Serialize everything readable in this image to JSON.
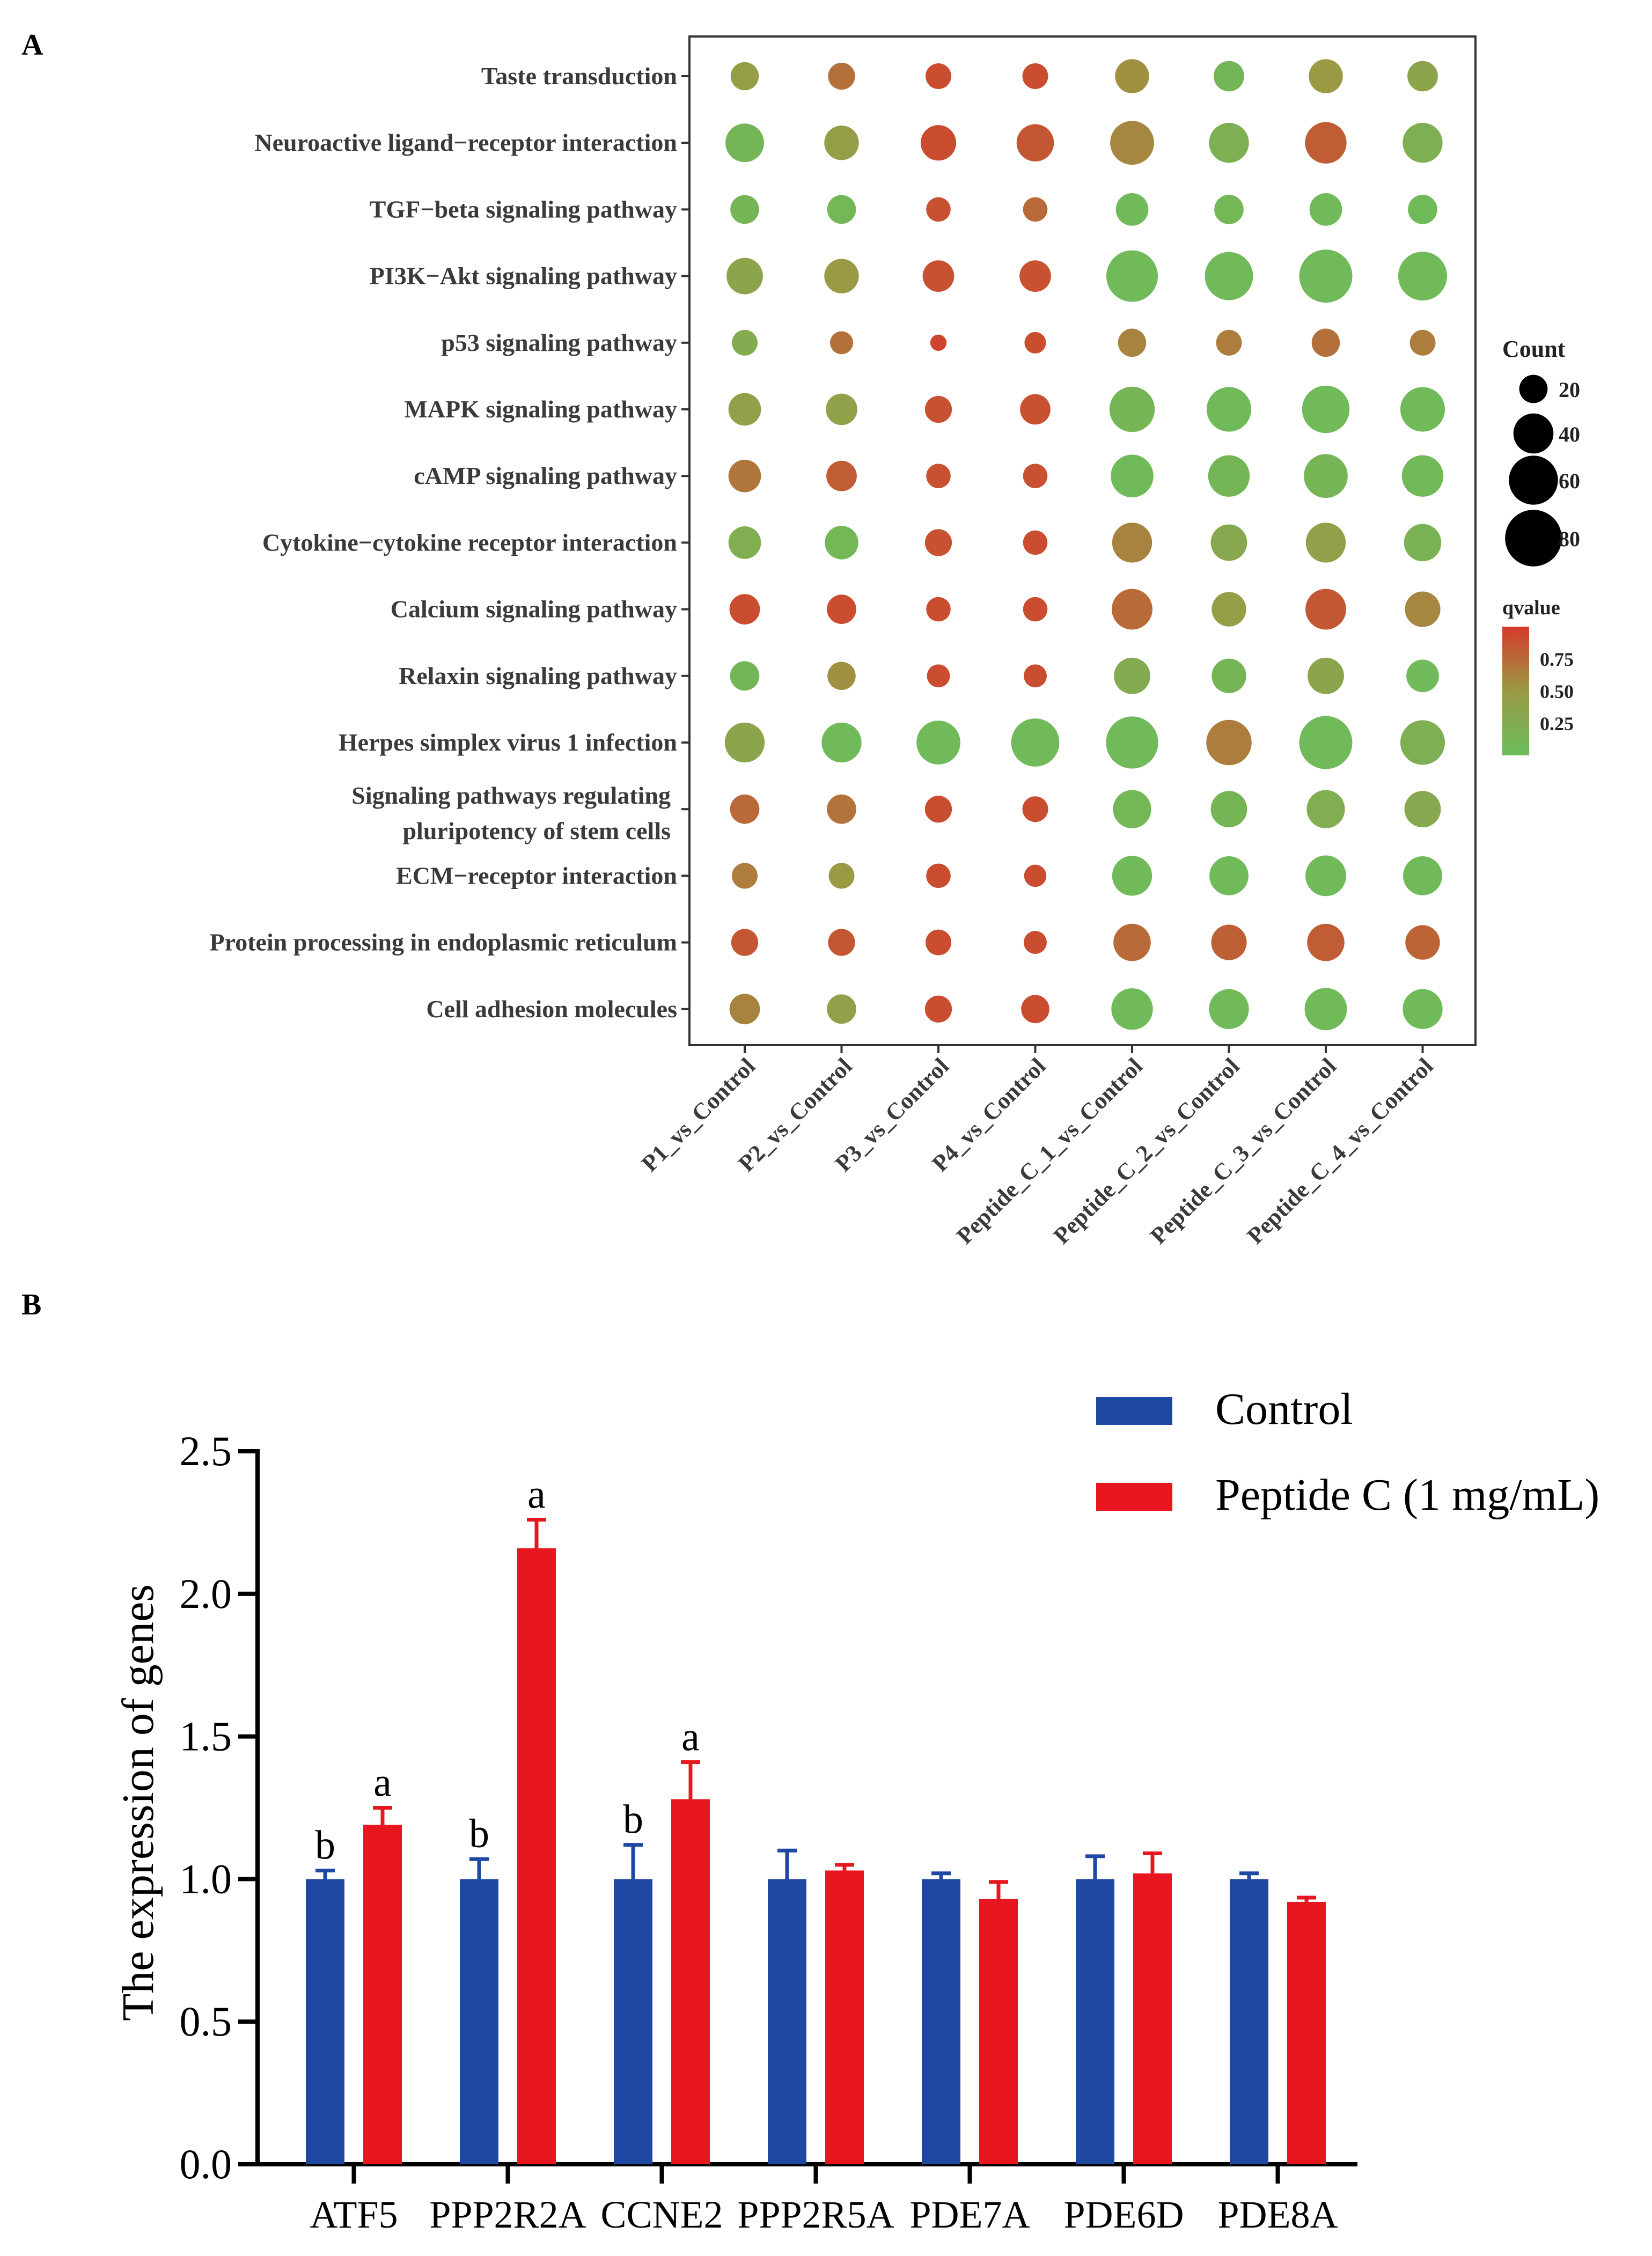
{
  "chart_data": [
    {
      "panel_label": "A",
      "type": "scatter",
      "subtype": "bubble",
      "title": "",
      "pathways": [
        "Taste transduction",
        "Neuroactive ligand−receptor interaction",
        "TGF−beta signaling pathway",
        "PI3K−Akt signaling pathway",
        "p53 signaling pathway",
        "MAPK signaling pathway",
        "cAMP signaling pathway",
        "Cytokine−cytokine receptor interaction",
        "Calcium signaling pathway",
        "Relaxin signaling pathway",
        "Herpes simplex virus 1 infection",
        [
          "Signaling pathways regulating",
          "pluripotency of stem cells"
        ],
        "ECM−receptor interaction",
        "Protein processing in endoplasmic reticulum",
        "Cell adhesion molecules"
      ],
      "comparisons": [
        "P1_vs_Control",
        "P2_vs_Control",
        "P3_vs_Control",
        "P4_vs_Control",
        "Peptide_C_1_vs_Control",
        "Peptide_C_2_vs_Control",
        "Peptide_C_3_vs_Control",
        "Peptide_C_4_vs_Control"
      ],
      "count": [
        [
          24,
          22,
          20,
          20,
          35,
          28,
          35,
          28
        ],
        [
          45,
          36,
          38,
          42,
          58,
          48,
          52,
          48
        ],
        [
          25,
          25,
          18,
          18,
          32,
          26,
          32,
          26
        ],
        [
          40,
          36,
          30,
          30,
          80,
          70,
          85,
          72
        ],
        [
          20,
          16,
          8,
          14,
          24,
          20,
          24,
          20
        ],
        [
          32,
          30,
          22,
          28,
          62,
          60,
          68,
          60
        ],
        [
          32,
          28,
          18,
          18,
          55,
          52,
          58,
          52
        ],
        [
          32,
          34,
          22,
          18,
          48,
          40,
          48,
          42
        ],
        [
          28,
          26,
          18,
          18,
          50,
          36,
          50,
          38
        ],
        [
          26,
          24,
          16,
          16,
          40,
          36,
          40,
          32
        ],
        [
          48,
          48,
          58,
          70,
          82,
          62,
          85,
          60
        ],
        [
          26,
          26,
          22,
          20,
          44,
          40,
          44,
          40
        ],
        [
          20,
          20,
          18,
          15,
          48,
          46,
          50,
          46
        ],
        [
          22,
          22,
          20,
          16,
          42,
          38,
          42,
          36
        ],
        [
          28,
          26,
          22,
          24,
          52,
          48,
          54,
          48
        ]
      ],
      "qvalue": [
        [
          0.45,
          0.72,
          0.9,
          0.9,
          0.55,
          0.1,
          0.5,
          0.35
        ],
        [
          0.1,
          0.45,
          0.9,
          0.85,
          0.6,
          0.2,
          0.82,
          0.2
        ],
        [
          0.12,
          0.08,
          0.88,
          0.75,
          0.05,
          0.08,
          0.05,
          0.05
        ],
        [
          0.35,
          0.5,
          0.88,
          0.88,
          0.05,
          0.05,
          0.05,
          0.05
        ],
        [
          0.25,
          0.72,
          0.95,
          0.9,
          0.62,
          0.65,
          0.72,
          0.65
        ],
        [
          0.42,
          0.38,
          0.88,
          0.88,
          0.12,
          0.05,
          0.05,
          0.05
        ],
        [
          0.68,
          0.82,
          0.88,
          0.88,
          0.05,
          0.1,
          0.12,
          0.05
        ],
        [
          0.22,
          0.08,
          0.88,
          0.9,
          0.62,
          0.3,
          0.4,
          0.15
        ],
        [
          0.9,
          0.9,
          0.9,
          0.9,
          0.75,
          0.45,
          0.85,
          0.6
        ],
        [
          0.1,
          0.55,
          0.9,
          0.9,
          0.25,
          0.12,
          0.35,
          0.05
        ],
        [
          0.35,
          0.05,
          0.05,
          0.05,
          0.05,
          0.65,
          0.05,
          0.2
        ],
        [
          0.75,
          0.7,
          0.9,
          0.9,
          0.08,
          0.12,
          0.22,
          0.3
        ],
        [
          0.65,
          0.5,
          0.9,
          0.9,
          0.05,
          0.05,
          0.05,
          0.05
        ],
        [
          0.85,
          0.85,
          0.9,
          0.9,
          0.75,
          0.8,
          0.82,
          0.78
        ],
        [
          0.62,
          0.4,
          0.9,
          0.9,
          0.05,
          0.05,
          0.05,
          0.05
        ]
      ],
      "size_legend": {
        "title": "Count",
        "values": [
          20,
          40,
          60,
          80
        ]
      },
      "color_legend": {
        "title": "qvalue",
        "ticks": [
          0.75,
          0.5,
          0.25
        ],
        "tick_labels": [
          "0.75",
          "0.50",
          "0.25"
        ],
        "range": [
          0.0,
          1.0
        ],
        "low_color": "#6bbd5b",
        "mid_color": "#9a9a45",
        "high_color": "#d63a2b"
      }
    },
    {
      "panel_label": "B",
      "type": "bar",
      "title": "",
      "xlabel": "",
      "ylabel": "The expression of genes",
      "ylim": [
        0.0,
        2.5
      ],
      "yticks": [
        "0.0",
        "0.5",
        "1.0",
        "1.5",
        "2.0",
        "2.5"
      ],
      "categories": [
        "ATF5",
        "PPP2R2A",
        "CCNE2",
        "PPP2R5A",
        "PDE7A",
        "PDE6D",
        "PDE8A"
      ],
      "series": [
        {
          "name": "Control",
          "color": "#1f48a3",
          "values": [
            1.0,
            1.0,
            1.0,
            1.0,
            1.0,
            1.0,
            1.0
          ],
          "errors": [
            0.03,
            0.07,
            0.12,
            0.1,
            0.02,
            0.08,
            0.02
          ],
          "letters": [
            "b",
            "b",
            "b",
            "",
            "",
            "",
            ""
          ]
        },
        {
          "name": "Peptide C (1 mg/mL)",
          "color": "#e8171f",
          "values": [
            1.19,
            2.16,
            1.28,
            1.03,
            0.93,
            1.02,
            0.92
          ],
          "errors": [
            0.06,
            0.1,
            0.13,
            0.02,
            0.06,
            0.07,
            0.015
          ],
          "letters": [
            "a",
            "a",
            "a",
            "",
            "",
            "",
            ""
          ]
        }
      ],
      "legend": "top-right"
    }
  ]
}
